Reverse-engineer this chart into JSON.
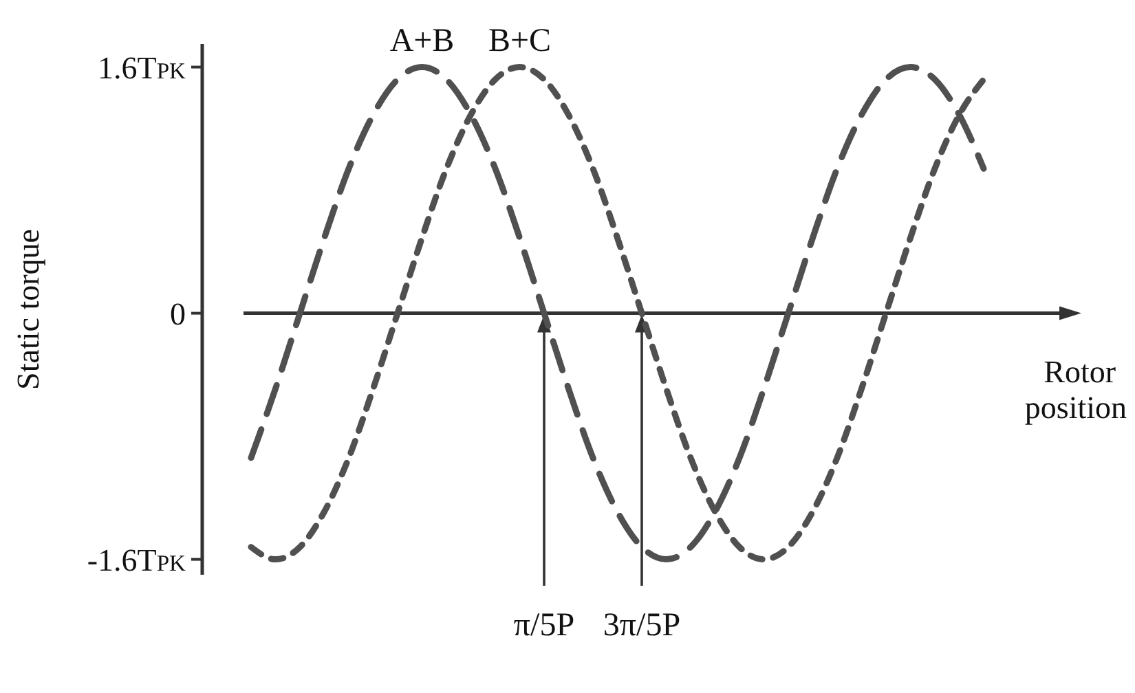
{
  "chart_data": {
    "type": "line",
    "xlabel": "Rotor position",
    "ylabel": "Static torque",
    "categories": [
      null,
      null,
      null,
      null,
      null,
      null,
      null,
      null,
      null,
      null,
      null,
      null,
      null,
      null,
      "π/5P",
      null,
      null,
      null,
      "3π/5P",
      null,
      null,
      null,
      null,
      null,
      null,
      null,
      null,
      null,
      null,
      null,
      null,
      null,
      null,
      null,
      null,
      null,
      null
    ],
    "ylim": [
      -1.7,
      1.75
    ],
    "yticks": [
      {
        "value": 1.6,
        "label": "1.6T$_{PK}$"
      },
      {
        "value": 0,
        "label": "0"
      },
      {
        "value": -1.6,
        "label": "-1.6T$_{PK}$"
      }
    ],
    "marker": "none",
    "annotations": [
      {
        "text": "A+B",
        "y": 1.6
      },
      {
        "text": "B+C",
        "y": 1.6
      }
    ],
    "series": [
      {
        "color": "#505050",
        "line_style": "dashed",
        "values": [
          null,
          null,
          -0.94,
          -0.49,
          0,
          0.49,
          0.94,
          1.29,
          1.52,
          1.6,
          1.52,
          1.29,
          0.94,
          0.49,
          0,
          -0.49,
          -0.94,
          -1.29,
          -1.52,
          -1.6,
          -1.52,
          -1.29,
          -0.94,
          -0.49,
          0,
          0.49,
          0.94,
          1.29,
          1.52,
          1.6,
          1.52,
          1.29,
          0.94,
          null,
          null,
          null,
          null
        ]
      },
      {
        "color": "#505050",
        "line_style": "dotted",
        "values": [
          null,
          null,
          -1.52,
          -1.6,
          -1.52,
          -1.29,
          -0.94,
          -0.49,
          0,
          0.49,
          0.94,
          1.29,
          1.52,
          1.6,
          1.52,
          1.29,
          0.94,
          0.49,
          0,
          -0.49,
          -0.94,
          -1.29,
          -1.52,
          -1.6,
          -1.52,
          -1.29,
          -0.94,
          -0.49,
          0,
          0.49,
          0.94,
          1.29,
          1.52,
          null,
          null,
          null,
          null
        ]
      }
    ]
  }
}
